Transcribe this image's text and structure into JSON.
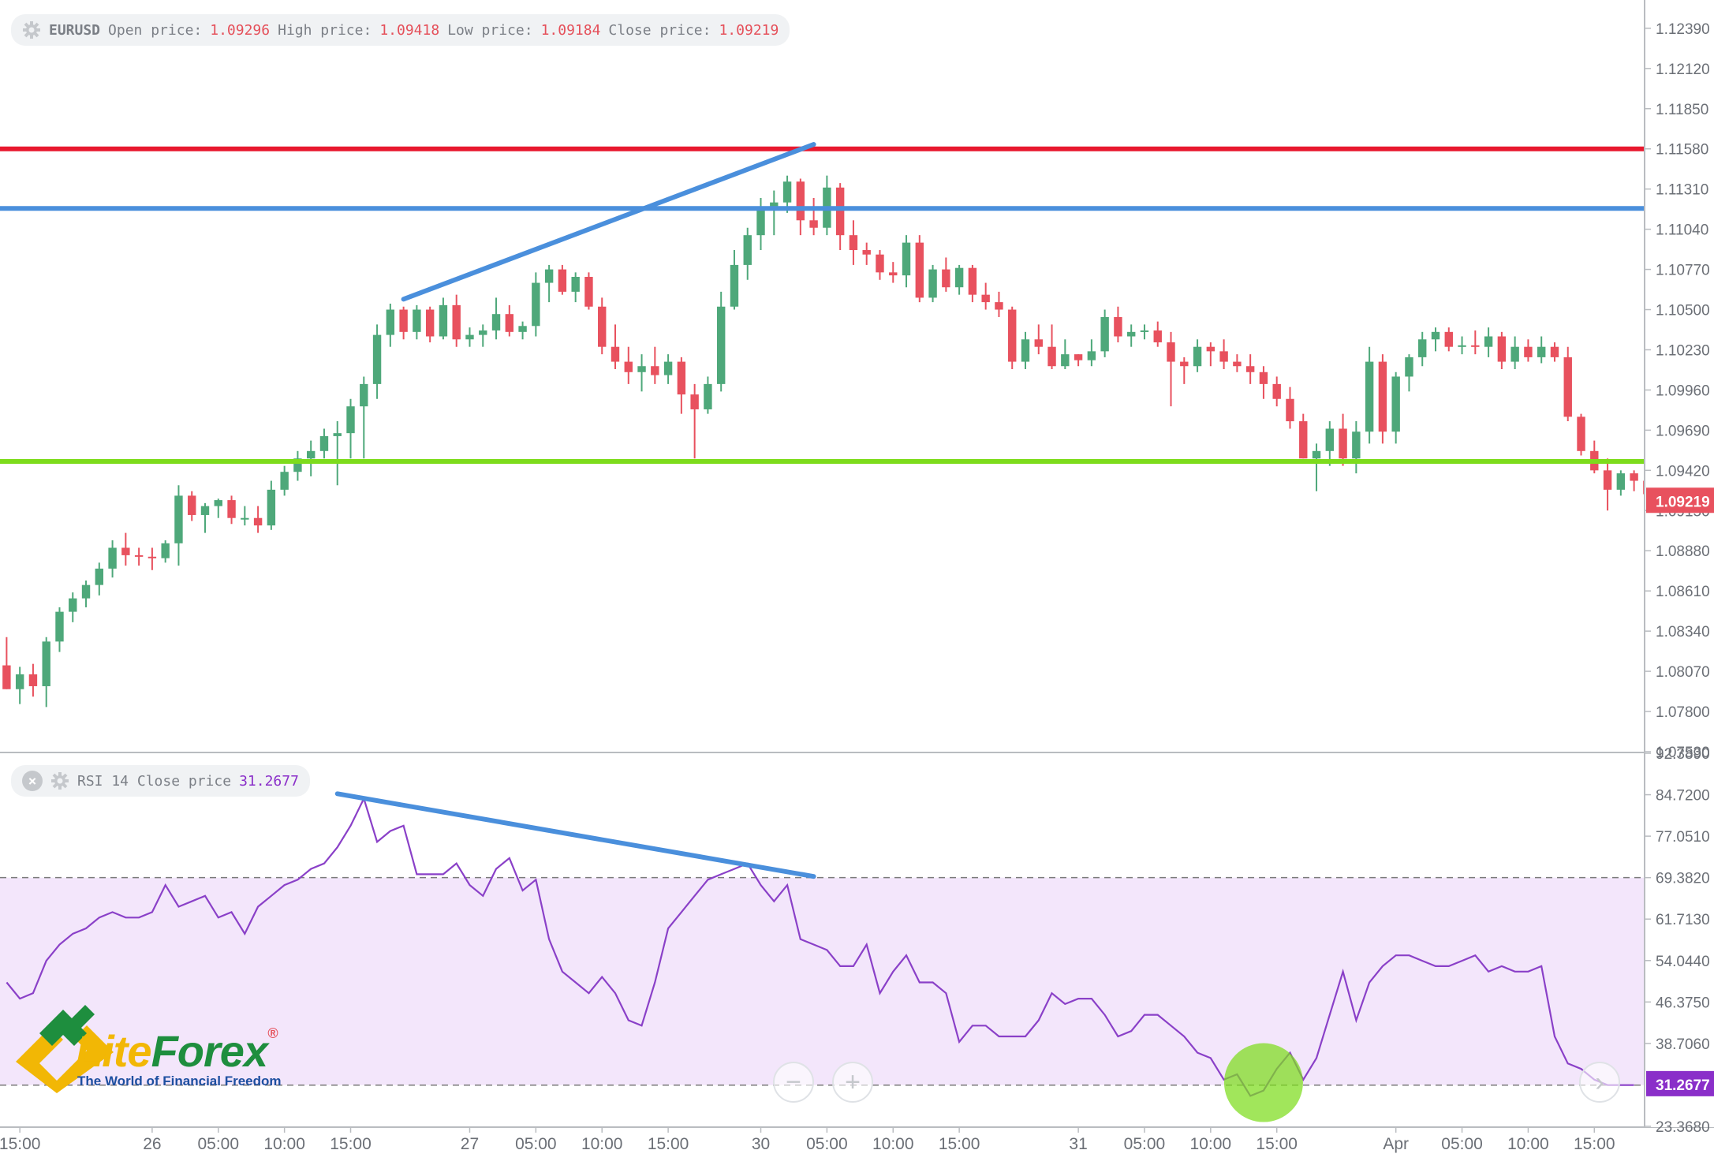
{
  "legend_main": {
    "symbol": "EURUSD",
    "open_label": "Open price:",
    "open": "1.09296",
    "high_label": "High price:",
    "high": "1.09418",
    "low_label": "Low price:",
    "low": "1.09184",
    "close_label": "Close price:",
    "close": "1.09219"
  },
  "legend_rsi": {
    "label": "RSI 14 Close price",
    "value": "31.2677"
  },
  "logo": {
    "name_a": "Lite",
    "name_b": "Forex",
    "reg": "®",
    "tagline": "The World of Financial Freedom"
  },
  "controls": {
    "zoom_out": "−",
    "zoom_in": "+",
    "scroll_right": "›"
  },
  "colors": {
    "up": "#4ea87a",
    "down": "#e8515e",
    "resistance": "#e8192f",
    "mid_level": "#4a8fdc",
    "support": "#7ddc1c",
    "rsi_line": "#8a40c8",
    "rsi_band": "#f3e6fb",
    "trendline": "#4a8fdc",
    "price_tag": "#e8515e",
    "rsi_tag": "#8a2fc9"
  },
  "chart_data": [
    {
      "type": "candlestick",
      "symbol": "EURUSD",
      "y_ticks": [
        "1.12390",
        "1.12120",
        "1.11850",
        "1.11580",
        "1.11310",
        "1.11040",
        "1.10770",
        "1.10500",
        "1.10230",
        "1.09960",
        "1.09690",
        "1.09420",
        "1.09150",
        "1.08880",
        "1.08610",
        "1.08340",
        "1.08070",
        "1.07800",
        "1.07530"
      ],
      "ylim": [
        1.0753,
        1.1258
      ],
      "x_ticks": [
        "15:00",
        "26",
        "05:00",
        "10:00",
        "15:00",
        "27",
        "05:00",
        "10:00",
        "15:00",
        "30",
        "05:00",
        "10:00",
        "15:00",
        "31",
        "05:00",
        "10:00",
        "15:00",
        "Apr",
        "05:00",
        "10:00",
        "15:00"
      ],
      "x_tick_bars": [
        1,
        11,
        16,
        21,
        26,
        35,
        40,
        45,
        50,
        57,
        62,
        67,
        72,
        81,
        86,
        91,
        96,
        105,
        110,
        115,
        120
      ],
      "bar_count": 124,
      "last_price": "1.09219",
      "horizontal_levels": [
        {
          "price": 1.1158,
          "role": "resistance"
        },
        {
          "price": 1.1118,
          "role": "mid_level"
        },
        {
          "price": 1.0948,
          "role": "support"
        }
      ],
      "trendline": {
        "from": {
          "bar": 30,
          "price": 1.1057
        },
        "to": {
          "bar": 61,
          "price": 1.1161
        }
      },
      "ohlc": [
        [
          1.0811,
          1.083,
          1.0795,
          1.0795
        ],
        [
          1.0795,
          1.081,
          1.0785,
          1.0805
        ],
        [
          1.0805,
          1.0812,
          1.079,
          1.0797
        ],
        [
          1.0797,
          1.083,
          1.0783,
          1.0827
        ],
        [
          1.0827,
          1.085,
          1.082,
          1.0847
        ],
        [
          1.0847,
          1.086,
          1.084,
          1.0856
        ],
        [
          1.0856,
          1.0868,
          1.085,
          1.0865
        ],
        [
          1.0865,
          1.088,
          1.0858,
          1.0876
        ],
        [
          1.0876,
          1.0895,
          1.087,
          1.089
        ],
        [
          1.089,
          1.09,
          1.0878,
          1.0885
        ],
        [
          1.0885,
          1.089,
          1.0878,
          1.0884
        ],
        [
          1.0884,
          1.089,
          1.0875,
          1.0883
        ],
        [
          1.0883,
          1.0895,
          1.088,
          1.0893
        ],
        [
          1.0893,
          1.0932,
          1.0878,
          1.0925
        ],
        [
          1.0925,
          1.0928,
          1.0908,
          1.0912
        ],
        [
          1.0912,
          1.092,
          1.09,
          1.0918
        ],
        [
          1.0918,
          1.0923,
          1.091,
          1.0922
        ],
        [
          1.0922,
          1.0925,
          1.0906,
          1.091
        ],
        [
          1.091,
          1.0918,
          1.0905,
          1.091
        ],
        [
          1.091,
          1.0918,
          1.09,
          1.0905
        ],
        [
          1.0905,
          1.0935,
          1.0902,
          1.0929
        ],
        [
          1.0929,
          1.0945,
          1.0925,
          1.0941
        ],
        [
          1.0941,
          1.0955,
          1.0935,
          1.095
        ],
        [
          1.095,
          1.0962,
          1.0938,
          1.0955
        ],
        [
          1.0955,
          1.097,
          1.095,
          1.0965
        ],
        [
          1.0965,
          1.0975,
          1.0932,
          1.0967
        ],
        [
          1.0967,
          1.099,
          1.095,
          1.0985
        ],
        [
          1.0985,
          1.1005,
          1.095,
          1.1
        ],
        [
          1.1,
          1.104,
          1.099,
          1.1033
        ],
        [
          1.1033,
          1.1054,
          1.1025,
          1.105
        ],
        [
          1.105,
          1.1052,
          1.103,
          1.1035
        ],
        [
          1.1035,
          1.1053,
          1.103,
          1.105
        ],
        [
          1.105,
          1.1052,
          1.1028,
          1.1032
        ],
        [
          1.1032,
          1.1058,
          1.103,
          1.1053
        ],
        [
          1.1053,
          1.106,
          1.1025,
          1.103
        ],
        [
          1.103,
          1.1038,
          1.1025,
          1.1033
        ],
        [
          1.1033,
          1.104,
          1.1025,
          1.1036
        ],
        [
          1.1036,
          1.1058,
          1.103,
          1.1047
        ],
        [
          1.1047,
          1.1053,
          1.1032,
          1.1035
        ],
        [
          1.1035,
          1.1042,
          1.103,
          1.1039
        ],
        [
          1.1039,
          1.1075,
          1.1032,
          1.1068
        ],
        [
          1.1068,
          1.108,
          1.1055,
          1.1077
        ],
        [
          1.1077,
          1.108,
          1.106,
          1.1062
        ],
        [
          1.1062,
          1.1075,
          1.1055,
          1.1072
        ],
        [
          1.1072,
          1.1075,
          1.105,
          1.1052
        ],
        [
          1.1052,
          1.1058,
          1.102,
          1.1025
        ],
        [
          1.1025,
          1.104,
          1.101,
          1.1015
        ],
        [
          1.1015,
          1.1025,
          1.1,
          1.1008
        ],
        [
          1.1008,
          1.102,
          1.0995,
          1.1012
        ],
        [
          1.1012,
          1.1025,
          1.1,
          1.1006
        ],
        [
          1.1006,
          1.102,
          1.1,
          1.1015
        ],
        [
          1.1015,
          1.1018,
          1.098,
          1.0993
        ],
        [
          1.0993,
          1.1,
          1.095,
          1.0983
        ],
        [
          1.0983,
          1.1005,
          1.098,
          1.1
        ],
        [
          1.1,
          1.1062,
          1.0995,
          1.1052
        ],
        [
          1.1052,
          1.109,
          1.105,
          1.108
        ],
        [
          1.108,
          1.1105,
          1.107,
          1.11
        ],
        [
          1.11,
          1.1125,
          1.109,
          1.1118
        ],
        [
          1.1118,
          1.113,
          1.11,
          1.1122
        ],
        [
          1.1122,
          1.114,
          1.1115,
          1.1136
        ],
        [
          1.1136,
          1.1138,
          1.11,
          1.111
        ],
        [
          1.111,
          1.1125,
          1.11,
          1.1105
        ],
        [
          1.1105,
          1.114,
          1.11,
          1.1132
        ],
        [
          1.1132,
          1.1135,
          1.109,
          1.11
        ],
        [
          1.11,
          1.111,
          1.108,
          1.109
        ],
        [
          1.109,
          1.1095,
          1.108,
          1.1087
        ],
        [
          1.1087,
          1.109,
          1.107,
          1.1075
        ],
        [
          1.1075,
          1.1082,
          1.1068,
          1.1073
        ],
        [
          1.1073,
          1.11,
          1.1065,
          1.1095
        ],
        [
          1.1095,
          1.11,
          1.1055,
          1.1058
        ],
        [
          1.1058,
          1.108,
          1.1055,
          1.1077
        ],
        [
          1.1077,
          1.1085,
          1.1062,
          1.1065
        ],
        [
          1.1065,
          1.108,
          1.106,
          1.1078
        ],
        [
          1.1078,
          1.108,
          1.1055,
          1.106
        ],
        [
          1.106,
          1.1068,
          1.105,
          1.1055
        ],
        [
          1.1055,
          1.1062,
          1.1045,
          1.105
        ],
        [
          1.105,
          1.1052,
          1.101,
          1.1015
        ],
        [
          1.1015,
          1.1035,
          1.101,
          1.103
        ],
        [
          1.103,
          1.104,
          1.102,
          1.1025
        ],
        [
          1.1025,
          1.104,
          1.101,
          1.1012
        ],
        [
          1.1012,
          1.103,
          1.101,
          1.102
        ],
        [
          1.102,
          1.102,
          1.1012,
          1.1016
        ],
        [
          1.1016,
          1.103,
          1.1012,
          1.1022
        ],
        [
          1.1022,
          1.105,
          1.1018,
          1.1045
        ],
        [
          1.1045,
          1.1052,
          1.1028,
          1.1032
        ],
        [
          1.1032,
          1.104,
          1.1025,
          1.1035
        ],
        [
          1.1035,
          1.104,
          1.103,
          1.1036
        ],
        [
          1.1036,
          1.1042,
          1.1025,
          1.1028
        ],
        [
          1.1028,
          1.1035,
          1.0985,
          1.1015
        ],
        [
          1.1015,
          1.1018,
          1.1,
          1.1012
        ],
        [
          1.1012,
          1.103,
          1.1008,
          1.1025
        ],
        [
          1.1025,
          1.1028,
          1.1012,
          1.1022
        ],
        [
          1.1022,
          1.103,
          1.101,
          1.1015
        ],
        [
          1.1015,
          1.102,
          1.1008,
          1.1012
        ],
        [
          1.1012,
          1.102,
          1.1,
          1.1008
        ],
        [
          1.1008,
          1.1012,
          1.099,
          1.1
        ],
        [
          1.1,
          1.1005,
          1.0985,
          1.099
        ],
        [
          1.099,
          1.0998,
          1.097,
          1.0975
        ],
        [
          1.0975,
          1.098,
          1.095,
          1.095
        ],
        [
          1.095,
          1.096,
          1.0928,
          1.0955
        ],
        [
          1.0955,
          1.0975,
          1.0945,
          1.097
        ],
        [
          1.097,
          1.098,
          1.0945,
          1.095
        ],
        [
          1.095,
          1.0975,
          1.094,
          1.0968
        ],
        [
          1.0968,
          1.1025,
          1.096,
          1.1015
        ],
        [
          1.1015,
          1.102,
          1.096,
          1.0968
        ],
        [
          1.0968,
          1.1008,
          1.096,
          1.1005
        ],
        [
          1.1005,
          1.102,
          1.0995,
          1.1018
        ],
        [
          1.1018,
          1.1035,
          1.1012,
          1.103
        ],
        [
          1.103,
          1.1038,
          1.1022,
          1.1035
        ],
        [
          1.1035,
          1.1038,
          1.1022,
          1.1025
        ],
        [
          1.1025,
          1.1032,
          1.102,
          1.1026
        ],
        [
          1.1026,
          1.1036,
          1.102,
          1.1025
        ],
        [
          1.1025,
          1.1038,
          1.1018,
          1.1032
        ],
        [
          1.1032,
          1.1035,
          1.101,
          1.1015
        ],
        [
          1.1015,
          1.1032,
          1.101,
          1.1025
        ],
        [
          1.1025,
          1.103,
          1.1015,
          1.1018
        ],
        [
          1.1018,
          1.1032,
          1.1014,
          1.1025
        ],
        [
          1.1025,
          1.1028,
          1.1015,
          1.1018
        ],
        [
          1.1018,
          1.1025,
          1.0975,
          1.0978
        ],
        [
          1.0978,
          1.098,
          1.0952,
          1.0955
        ],
        [
          1.0955,
          1.0962,
          1.094,
          1.0942
        ],
        [
          1.0942,
          1.095,
          1.0915,
          1.0929
        ],
        [
          1.0929,
          1.0942,
          1.0925,
          1.094
        ],
        [
          1.094,
          1.0942,
          1.0928,
          1.0935
        ],
        [
          1.0935,
          1.0938,
          1.0922,
          1.0926
        ],
        [
          1.0926,
          1.093,
          1.092,
          1.0922
        ]
      ]
    },
    {
      "type": "line",
      "name": "RSI 14 Close price",
      "y_ticks": [
        "92.3890",
        "84.7200",
        "77.0510",
        "69.3820",
        "61.7130",
        "54.0440",
        "46.3750",
        "38.7060",
        "31.2677",
        "23.3680"
      ],
      "ylim": [
        23.368,
        92.389
      ],
      "band": [
        31.0,
        69.382
      ],
      "trendline": {
        "from": {
          "bar": 25,
          "value": 84.9
        },
        "to": {
          "bar": 61,
          "value": 69.6
        }
      },
      "highlight": {
        "bar": 95,
        "value": 30
      },
      "last_value": "31.2677",
      "values": [
        50,
        47,
        48,
        54,
        57,
        59,
        60,
        62,
        63,
        62,
        62,
        63,
        68,
        64,
        65,
        66,
        62,
        63,
        59,
        64,
        66,
        68,
        69,
        71,
        72,
        75,
        79,
        84,
        76,
        78,
        79,
        70,
        70,
        70,
        72,
        68,
        66,
        71,
        73,
        67,
        69,
        58,
        52,
        50,
        48,
        51,
        48,
        43,
        42,
        50,
        60,
        63,
        66,
        69,
        70,
        71,
        72,
        68,
        65,
        68,
        58,
        57,
        56,
        53,
        53,
        57,
        48,
        52,
        55,
        50,
        50,
        48,
        39,
        42,
        42,
        40,
        40,
        40,
        43,
        48,
        46,
        47,
        47,
        44,
        40,
        41,
        44,
        44,
        42,
        40,
        37,
        36,
        32,
        33,
        29,
        30,
        34,
        37,
        32,
        36,
        44,
        52,
        43,
        50,
        53,
        55,
        55,
        54,
        53,
        53,
        54,
        55,
        52,
        53,
        52,
        52,
        53,
        40,
        35,
        34,
        32,
        31,
        31,
        31
      ]
    }
  ]
}
